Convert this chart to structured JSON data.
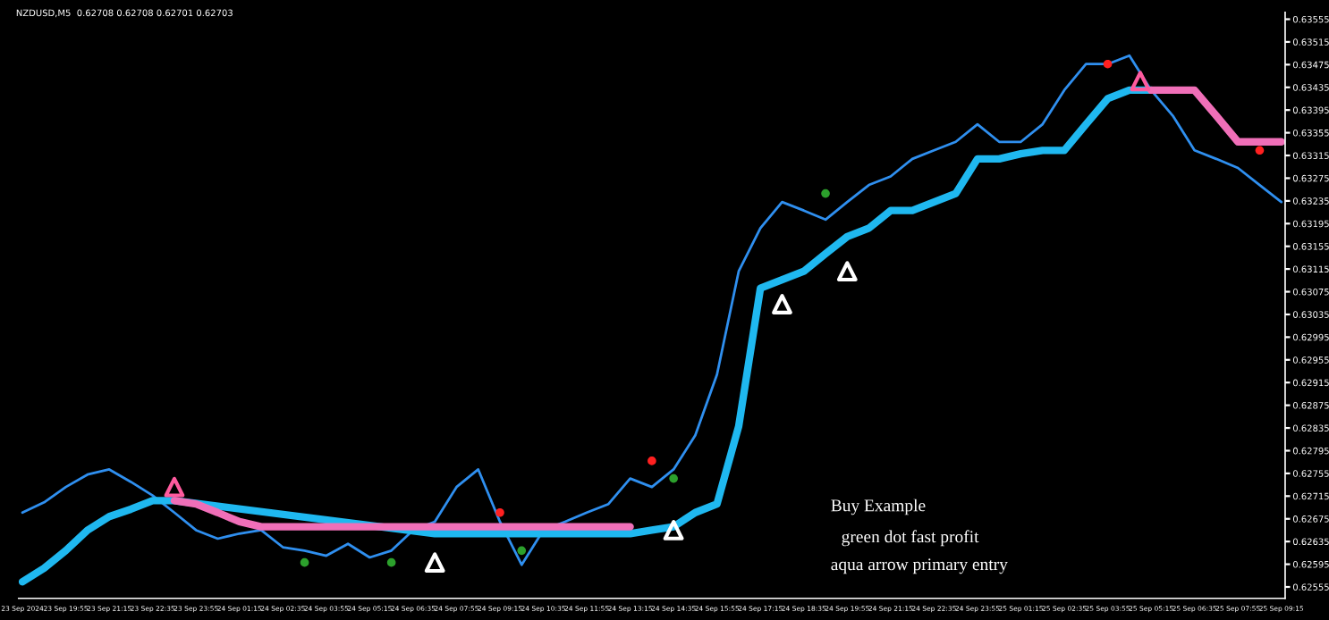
{
  "chart_data": {
    "type": "line",
    "title": "NZDUSD,M5  0.62708 0.62708 0.62701 0.62703",
    "annotations": [
      "Buy Example",
      "green dot fast profit",
      "aqua arrow primary entry"
    ],
    "grid": false,
    "legend": false,
    "xlim": [
      "2024-09-23T18:28",
      "2024-09-25T09:22"
    ],
    "xticks": [
      {
        "value": "2024-09-23T18:35",
        "label": "23 Sep 2024"
      },
      {
        "value": "2024-09-23T19:55",
        "label": "23 Sep 19:55"
      },
      {
        "value": "2024-09-23T21:15",
        "label": "23 Sep 21:15"
      },
      {
        "value": "2024-09-23T22:35",
        "label": "23 Sep 22:35"
      },
      {
        "value": "2024-09-23T23:55",
        "label": "23 Sep 23:55"
      },
      {
        "value": "2024-09-24T01:15",
        "label": "24 Sep 01:15"
      },
      {
        "value": "2024-09-24T02:35",
        "label": "24 Sep 02:35"
      },
      {
        "value": "2024-09-24T03:55",
        "label": "24 Sep 03:55"
      },
      {
        "value": "2024-09-24T05:15",
        "label": "24 Sep 05:15"
      },
      {
        "value": "2024-09-24T06:35",
        "label": "24 Sep 06:35"
      },
      {
        "value": "2024-09-24T07:55",
        "label": "24 Sep 07:55"
      },
      {
        "value": "2024-09-24T09:15",
        "label": "24 Sep 09:15"
      },
      {
        "value": "2024-09-24T10:35",
        "label": "24 Sep 10:35"
      },
      {
        "value": "2024-09-24T11:55",
        "label": "24 Sep 11:55"
      },
      {
        "value": "2024-09-24T13:15",
        "label": "24 Sep 13:15"
      },
      {
        "value": "2024-09-24T14:35",
        "label": "24 Sep 14:35"
      },
      {
        "value": "2024-09-24T15:55",
        "label": "24 Sep 15:55"
      },
      {
        "value": "2024-09-24T17:15",
        "label": "24 Sep 17:15"
      },
      {
        "value": "2024-09-24T18:35",
        "label": "24 Sep 18:35"
      },
      {
        "value": "2024-09-24T19:55",
        "label": "24 Sep 19:55"
      },
      {
        "value": "2024-09-24T21:15",
        "label": "24 Sep 21:15"
      },
      {
        "value": "2024-09-24T22:35",
        "label": "24 Sep 22:35"
      },
      {
        "value": "2024-09-24T23:55",
        "label": "24 Sep 23:55"
      },
      {
        "value": "2024-09-25T01:15",
        "label": "25 Sep 01:15"
      },
      {
        "value": "2024-09-25T02:35",
        "label": "25 Sep 02:35"
      },
      {
        "value": "2024-09-25T03:55",
        "label": "25 Sep 03:55"
      },
      {
        "value": "2024-09-25T05:15",
        "label": "25 Sep 05:15"
      },
      {
        "value": "2024-09-25T06:35",
        "label": "25 Sep 06:35"
      },
      {
        "value": "2024-09-25T07:55",
        "label": "25 Sep 07:55"
      },
      {
        "value": "2024-09-25T09:15",
        "label": "25 Sep 09:15"
      }
    ],
    "ylim": [
      0.62535,
      0.63567
    ],
    "yticks": [
      0.62555,
      0.62595,
      0.62635,
      0.62675,
      0.62715,
      0.62755,
      0.62795,
      0.62835,
      0.62875,
      0.62915,
      0.62955,
      0.62995,
      0.63035,
      0.63075,
      0.63115,
      0.63155,
      0.63195,
      0.63235,
      0.63275,
      0.63315,
      0.63355,
      0.63395,
      0.63435,
      0.63475,
      0.63515,
      0.63555
    ],
    "series": [
      {
        "color": "#2f8fef",
        "x": [
          "2024-09-23T18:35",
          "2024-09-23T19:15",
          "2024-09-23T19:55",
          "2024-09-23T20:35",
          "2024-09-23T21:15",
          "2024-09-23T21:55",
          "2024-09-23T22:35",
          "2024-09-23T23:15",
          "2024-09-23T23:55",
          "2024-09-24T00:35",
          "2024-09-24T01:15",
          "2024-09-24T01:55",
          "2024-09-24T02:35",
          "2024-09-24T03:15",
          "2024-09-24T03:55",
          "2024-09-24T04:35",
          "2024-09-24T05:15",
          "2024-09-24T05:55",
          "2024-09-24T06:35",
          "2024-09-24T07:15",
          "2024-09-24T07:55",
          "2024-09-24T08:35",
          "2024-09-24T09:15",
          "2024-09-24T09:55",
          "2024-09-24T10:35",
          "2024-09-24T11:15",
          "2024-09-24T11:55",
          "2024-09-24T12:35",
          "2024-09-24T13:15",
          "2024-09-24T13:55",
          "2024-09-24T14:35",
          "2024-09-24T15:15",
          "2024-09-24T15:55",
          "2024-09-24T16:35",
          "2024-09-24T17:15",
          "2024-09-24T17:55",
          "2024-09-24T18:35",
          "2024-09-24T19:15",
          "2024-09-24T19:55",
          "2024-09-24T20:35",
          "2024-09-24T21:15",
          "2024-09-24T21:55",
          "2024-09-24T22:35",
          "2024-09-24T23:15",
          "2024-09-24T23:55",
          "2024-09-25T00:35",
          "2024-09-25T01:15",
          "2024-09-25T01:55",
          "2024-09-25T02:35",
          "2024-09-25T03:15",
          "2024-09-25T03:55",
          "2024-09-25T04:35",
          "2024-09-25T05:15",
          "2024-09-25T05:55",
          "2024-09-25T06:35",
          "2024-09-25T07:15",
          "2024-09-25T07:55",
          "2024-09-25T08:35",
          "2024-09-25T09:15"
        ],
        "values": [
          0.62686,
          0.62704,
          0.62731,
          0.62753,
          0.62762,
          0.6274,
          0.62716,
          0.62686,
          0.62655,
          0.6264,
          0.62649,
          0.62655,
          0.62625,
          0.62619,
          0.6261,
          0.62631,
          0.62607,
          0.62619,
          0.62655,
          0.6267,
          0.62731,
          0.62762,
          0.6267,
          0.62594,
          0.62655,
          0.6267,
          0.62686,
          0.62701,
          0.62746,
          0.62731,
          0.62762,
          0.62822,
          0.62929,
          0.63111,
          0.63187,
          0.63233,
          0.63218,
          0.63202,
          0.63233,
          0.63263,
          0.63278,
          0.63309,
          0.63324,
          0.63339,
          0.6337,
          0.63339,
          0.63339,
          0.6337,
          0.6343,
          0.63476,
          0.63476,
          0.63491,
          0.6343,
          0.63385,
          0.63324,
          0.63309,
          0.63293,
          0.63263,
          0.63233
        ]
      },
      {
        "color": "#1fb8f0",
        "x": [
          "2024-09-23T18:35",
          "2024-09-23T19:15",
          "2024-09-23T19:55",
          "2024-09-23T20:35",
          "2024-09-23T21:15",
          "2024-09-23T21:55",
          "2024-09-23T22:35",
          "2024-09-23T23:15",
          "2024-09-24T07:15",
          "2024-09-24T07:55",
          "2024-09-24T08:35",
          "2024-09-24T09:15",
          "2024-09-24T09:55",
          "2024-09-24T10:35",
          "2024-09-24T11:15",
          "2024-09-24T11:55",
          "2024-09-24T12:35",
          "2024-09-24T13:15",
          "2024-09-24T13:55",
          "2024-09-24T14:35",
          "2024-09-24T15:15",
          "2024-09-24T15:55",
          "2024-09-24T16:35",
          "2024-09-24T17:15",
          "2024-09-24T17:55",
          "2024-09-24T18:35",
          "2024-09-24T19:15",
          "2024-09-24T19:55",
          "2024-09-24T20:35",
          "2024-09-24T21:15",
          "2024-09-24T21:55",
          "2024-09-24T22:35",
          "2024-09-24T23:15",
          "2024-09-24T23:55",
          "2024-09-25T00:35",
          "2024-09-25T01:15",
          "2024-09-25T01:55",
          "2024-09-25T02:35",
          "2024-09-25T03:15",
          "2024-09-25T03:55",
          "2024-09-25T04:35",
          "2024-09-25T05:15"
        ],
        "values": [
          0.62564,
          0.62588,
          0.62619,
          0.62655,
          0.62679,
          0.62692,
          0.62707,
          0.62707,
          0.62649,
          0.62649,
          0.62649,
          0.62649,
          0.62649,
          0.62649,
          0.62649,
          0.62649,
          0.62649,
          0.62649,
          0.62655,
          0.62661,
          0.62686,
          0.62701,
          0.62838,
          0.63081,
          0.63096,
          0.63111,
          0.63142,
          0.63172,
          0.63187,
          0.63218,
          0.63218,
          0.63233,
          0.63248,
          0.63309,
          0.63309,
          0.63318,
          0.63324,
          0.63324,
          0.6337,
          0.63415,
          0.6343,
          0.6343
        ]
      },
      {
        "color": "#f06fb8",
        "x": [
          "2024-09-23T23:15",
          "2024-09-23T23:55",
          "2024-09-24T00:35",
          "2024-09-24T01:15",
          "2024-09-24T01:55",
          "2024-09-24T13:15",
          "2024-09-25T04:35",
          "2024-09-25T05:15",
          "2024-09-25T05:55",
          "2024-09-25T06:35",
          "2024-09-25T07:15",
          "2024-09-25T07:55",
          "2024-09-25T08:35",
          "2024-09-25T09:15"
        ],
        "values": [
          0.62707,
          0.62701,
          0.62686,
          0.6267,
          0.62661,
          0.62661,
          null,
          0.6343,
          0.6343,
          0.6343,
          0.63385,
          0.63339,
          0.63339,
          0.63339
        ]
      },
      {
        "type": "scatter",
        "color": "#ffffff",
        "marker": "triangle",
        "x": [
          "2024-09-24T07:15",
          "2024-09-24T14:35",
          "2024-09-24T17:55",
          "2024-09-24T19:55"
        ],
        "values": [
          0.62598,
          0.62655,
          0.63053,
          0.63111
        ]
      },
      {
        "type": "scatter",
        "color": "#ff5a9e",
        "marker": "triangle",
        "x": [
          "2024-09-23T23:15",
          "2024-09-25T04:55"
        ],
        "values": [
          0.62731,
          0.63446
        ]
      },
      {
        "type": "scatter",
        "color": "#2ca02c",
        "marker": "circle",
        "x": [
          "2024-09-24T03:15",
          "2024-09-24T05:55",
          "2024-09-24T09:55",
          "2024-09-24T14:35",
          "2024-09-24T19:15"
        ],
        "values": [
          0.62598,
          0.62598,
          0.62619,
          0.62746,
          0.63248
        ]
      },
      {
        "type": "scatter",
        "color": "#ff2020",
        "marker": "circle",
        "x": [
          "2024-09-24T09:15",
          "2024-09-24T13:55",
          "2024-09-25T03:55",
          "2024-09-25T08:35"
        ],
        "values": [
          0.62686,
          0.62777,
          0.63476,
          0.63324
        ]
      }
    ]
  }
}
